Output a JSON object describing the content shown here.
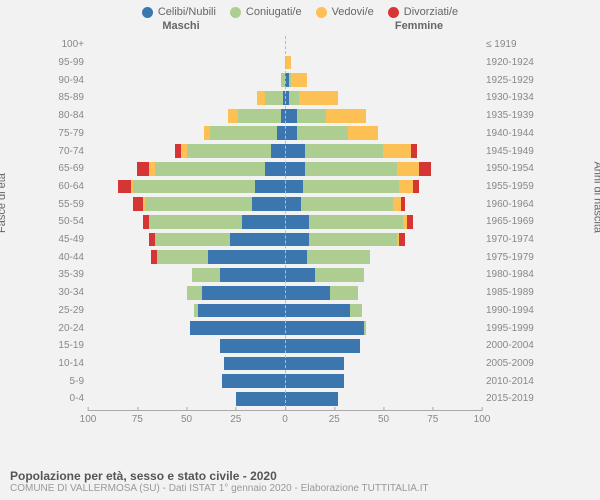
{
  "chart": {
    "type": "population_pyramid_stacked",
    "background_color": "#f2f2f2",
    "legend": [
      {
        "label": "Celibi/Nubili",
        "color": "#3b76af"
      },
      {
        "label": "Coniugati/e",
        "color": "#aecd91"
      },
      {
        "label": "Vedovi/e",
        "color": "#fcc055"
      },
      {
        "label": "Divorziati/e",
        "color": "#d53635"
      }
    ],
    "male_header": "Maschi",
    "female_header": "Femmine",
    "left_axis_label": "Fasce di età",
    "right_axis_label": "Anni di nascita",
    "x_max": 100,
    "x_ticks": [
      100,
      75,
      50,
      25,
      0,
      25,
      50,
      75,
      100
    ],
    "footer_title": "Popolazione per età, sesso e stato civile - 2020",
    "footer_sub": "COMUNE DI VALLERMOSA (SU) - Dati ISTAT 1° gennaio 2020 - Elaborazione TUTTITALIA.IT",
    "rows": [
      {
        "age": "100+",
        "birth": "≤ 1919",
        "m": {
          "c": 0,
          "co": 0,
          "v": 0,
          "d": 0
        },
        "f": {
          "c": 0,
          "co": 0,
          "v": 0,
          "d": 0
        }
      },
      {
        "age": "95-99",
        "birth": "1920-1924",
        "m": {
          "c": 0,
          "co": 0,
          "v": 0,
          "d": 0
        },
        "f": {
          "c": 0,
          "co": 0,
          "v": 3,
          "d": 0
        }
      },
      {
        "age": "90-94",
        "birth": "1925-1929",
        "m": {
          "c": 0,
          "co": 2,
          "v": 0,
          "d": 0
        },
        "f": {
          "c": 2,
          "co": 1,
          "v": 8,
          "d": 0
        }
      },
      {
        "age": "85-89",
        "birth": "1930-1934",
        "m": {
          "c": 1,
          "co": 9,
          "v": 4,
          "d": 0
        },
        "f": {
          "c": 2,
          "co": 5,
          "v": 20,
          "d": 0
        }
      },
      {
        "age": "80-84",
        "birth": "1935-1939",
        "m": {
          "c": 2,
          "co": 22,
          "v": 5,
          "d": 0
        },
        "f": {
          "c": 6,
          "co": 15,
          "v": 20,
          "d": 0
        }
      },
      {
        "age": "75-79",
        "birth": "1940-1944",
        "m": {
          "c": 4,
          "co": 34,
          "v": 3,
          "d": 0
        },
        "f": {
          "c": 6,
          "co": 26,
          "v": 15,
          "d": 0
        }
      },
      {
        "age": "70-74",
        "birth": "1945-1949",
        "m": {
          "c": 7,
          "co": 43,
          "v": 3,
          "d": 3
        },
        "f": {
          "c": 10,
          "co": 40,
          "v": 14,
          "d": 3
        }
      },
      {
        "age": "65-69",
        "birth": "1950-1954",
        "m": {
          "c": 10,
          "co": 56,
          "v": 3,
          "d": 6
        },
        "f": {
          "c": 10,
          "co": 47,
          "v": 11,
          "d": 6
        }
      },
      {
        "age": "60-64",
        "birth": "1955-1959",
        "m": {
          "c": 15,
          "co": 62,
          "v": 1,
          "d": 7
        },
        "f": {
          "c": 9,
          "co": 49,
          "v": 7,
          "d": 3
        }
      },
      {
        "age": "55-59",
        "birth": "1960-1964",
        "m": {
          "c": 17,
          "co": 54,
          "v": 1,
          "d": 5
        },
        "f": {
          "c": 8,
          "co": 47,
          "v": 4,
          "d": 2
        }
      },
      {
        "age": "50-54",
        "birth": "1965-1969",
        "m": {
          "c": 22,
          "co": 47,
          "v": 0,
          "d": 3
        },
        "f": {
          "c": 12,
          "co": 48,
          "v": 2,
          "d": 3
        }
      },
      {
        "age": "45-49",
        "birth": "1970-1974",
        "m": {
          "c": 28,
          "co": 38,
          "v": 0,
          "d": 3
        },
        "f": {
          "c": 12,
          "co": 45,
          "v": 1,
          "d": 3
        }
      },
      {
        "age": "40-44",
        "birth": "1975-1979",
        "m": {
          "c": 39,
          "co": 26,
          "v": 0,
          "d": 3
        },
        "f": {
          "c": 11,
          "co": 32,
          "v": 0,
          "d": 0
        }
      },
      {
        "age": "35-39",
        "birth": "1980-1984",
        "m": {
          "c": 33,
          "co": 14,
          "v": 0,
          "d": 0
        },
        "f": {
          "c": 15,
          "co": 25,
          "v": 0,
          "d": 0
        }
      },
      {
        "age": "30-34",
        "birth": "1985-1989",
        "m": {
          "c": 42,
          "co": 8,
          "v": 0,
          "d": 0
        },
        "f": {
          "c": 23,
          "co": 14,
          "v": 0,
          "d": 0
        }
      },
      {
        "age": "25-29",
        "birth": "1990-1994",
        "m": {
          "c": 44,
          "co": 2,
          "v": 0,
          "d": 0
        },
        "f": {
          "c": 33,
          "co": 6,
          "v": 0,
          "d": 0
        }
      },
      {
        "age": "20-24",
        "birth": "1995-1999",
        "m": {
          "c": 48,
          "co": 0,
          "v": 0,
          "d": 0
        },
        "f": {
          "c": 40,
          "co": 1,
          "v": 0,
          "d": 0
        }
      },
      {
        "age": "15-19",
        "birth": "2000-2004",
        "m": {
          "c": 33,
          "co": 0,
          "v": 0,
          "d": 0
        },
        "f": {
          "c": 38,
          "co": 0,
          "v": 0,
          "d": 0
        }
      },
      {
        "age": "10-14",
        "birth": "2005-2009",
        "m": {
          "c": 31,
          "co": 0,
          "v": 0,
          "d": 0
        },
        "f": {
          "c": 30,
          "co": 0,
          "v": 0,
          "d": 0
        }
      },
      {
        "age": "5-9",
        "birth": "2010-2014",
        "m": {
          "c": 32,
          "co": 0,
          "v": 0,
          "d": 0
        },
        "f": {
          "c": 30,
          "co": 0,
          "v": 0,
          "d": 0
        }
      },
      {
        "age": "0-4",
        "birth": "2015-2019",
        "m": {
          "c": 25,
          "co": 0,
          "v": 0,
          "d": 0
        },
        "f": {
          "c": 27,
          "co": 0,
          "v": 0,
          "d": 0
        }
      }
    ]
  }
}
